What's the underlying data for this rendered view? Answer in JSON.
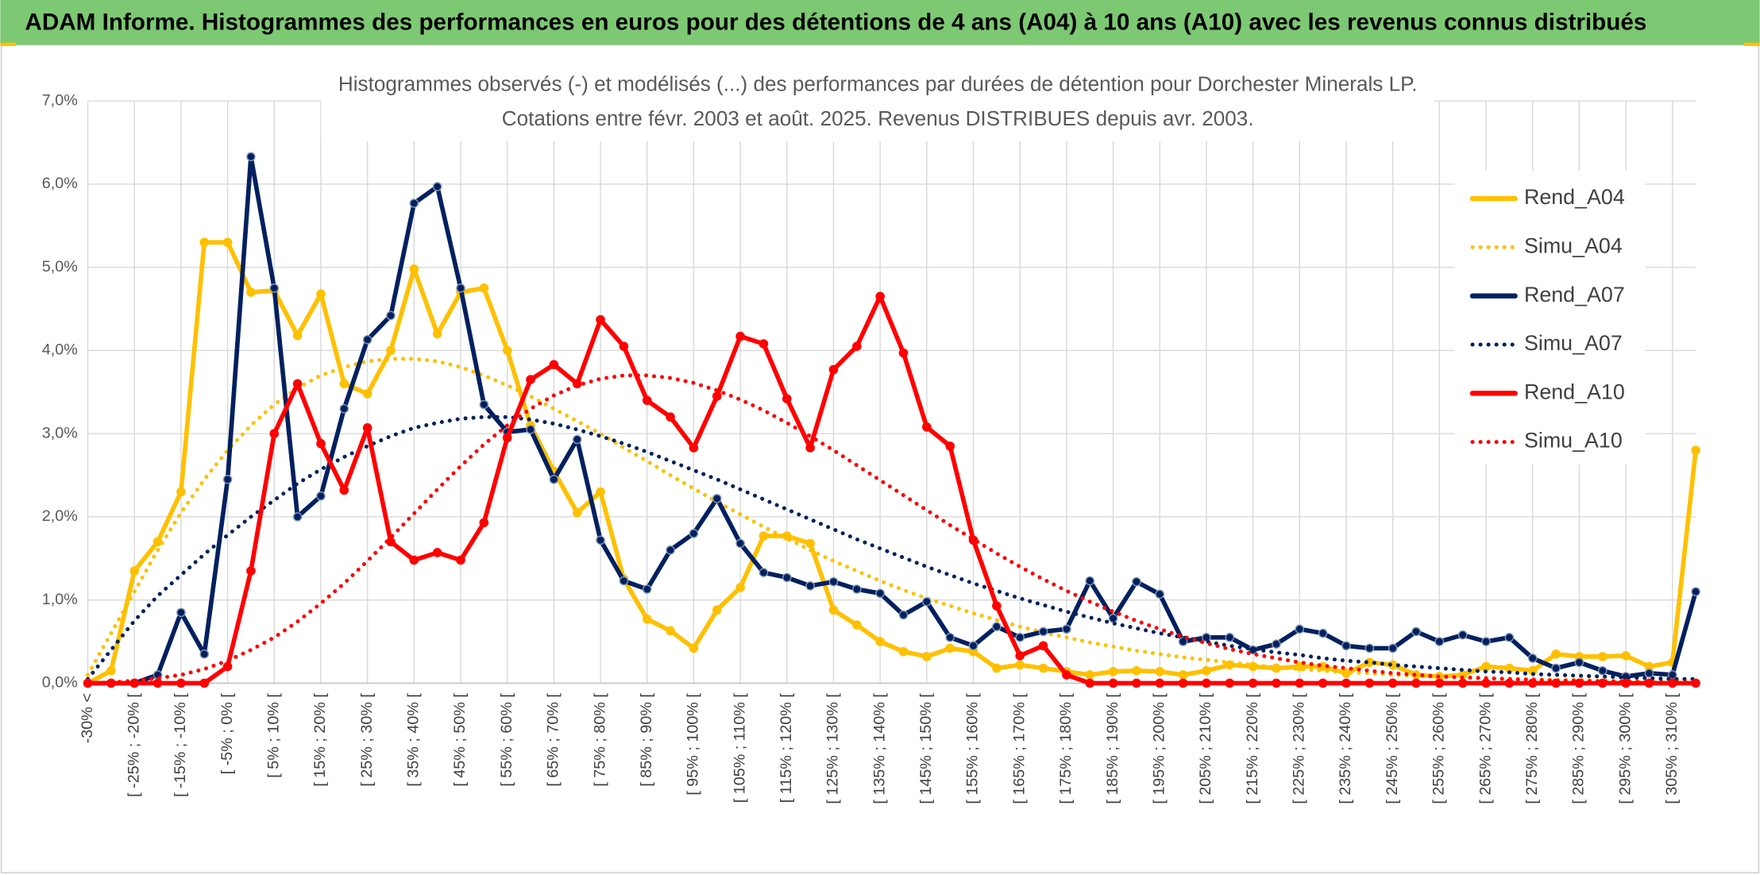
{
  "header": {
    "title": "ADAM Informe. Histogrammes des performances en euros pour des détentions de 4 ans (A04) à 10 ans (A10) avec les revenus connus distribués"
  },
  "chart_data": {
    "type": "line",
    "title": "Histogrammes observés (-) et modélisés (...) des performances par durées de détention pour Dorchester Minerals LP.",
    "subtitle": "Cotations entre févr. 2003 et août. 2025. Revenus DISTRIBUES depuis avr. 2003.",
    "categories": [
      "-30% <",
      null,
      "[ -25% ; -20% [",
      null,
      "[ -15% ; -10% [",
      null,
      "[ -5% ; 0% [",
      null,
      "[ 5% ; 10% [",
      null,
      "[ 15% ; 20% [",
      null,
      "[ 25% ; 30% [",
      null,
      "[ 35% ; 40% [",
      null,
      "[ 45% ; 50% [",
      null,
      "[ 55% ; 60% [",
      null,
      "[ 65% ; 70% [",
      null,
      "[ 75% ; 80% [",
      null,
      "[ 85% ; 90% [",
      null,
      "[ 95% ; 100% [",
      null,
      "[ 105% ; 110% [",
      null,
      "[ 115% ; 120% [",
      null,
      "[ 125% ; 130% [",
      null,
      "[ 135% ; 140% [",
      null,
      "[ 145% ; 150% [",
      null,
      "[ 155% ; 160% [",
      null,
      "[ 165% ; 170% [",
      null,
      "[ 175% ; 180% [",
      null,
      "[ 185% ; 190% [",
      null,
      "[ 195% ; 200% [",
      null,
      "[ 205% ; 210% [",
      null,
      "[ 215% ; 220% [",
      null,
      "[ 225% ; 230% [",
      null,
      "[ 235% ; 240% [",
      null,
      "[ 245% ; 250% [",
      null,
      "[ 255% ; 260% [",
      null,
      "[ 265% ; 270% [",
      null,
      "[ 275% ; 280% [",
      null,
      "[ 285% ; 290% [",
      null,
      "[ 295% ; 300% [",
      null,
      "[ 305% ; 310% [",
      null
    ],
    "ylim": [
      0,
      7
    ],
    "yticks": [
      {
        "value": 0,
        "label": "0,0%"
      },
      {
        "value": 1,
        "label": "1,0%"
      },
      {
        "value": 2,
        "label": "2,0%"
      },
      {
        "value": 3,
        "label": "3,0%"
      },
      {
        "value": 4,
        "label": "4,0%"
      },
      {
        "value": 5,
        "label": "5,0%"
      },
      {
        "value": 6,
        "label": "6,0%"
      },
      {
        "value": 7,
        "label": "7,0%"
      }
    ],
    "grid": true,
    "legend": "right",
    "series": [
      {
        "name": "Rend_A04",
        "color": "#ffc000",
        "line_style": "solid",
        "markers": true,
        "values": [
          0,
          0.15,
          1.35,
          1.7,
          2.3,
          5.3,
          5.3,
          4.7,
          4.72,
          4.18,
          4.68,
          3.6,
          3.48,
          4.0,
          4.98,
          4.2,
          4.7,
          4.75,
          4.0,
          3.1,
          2.55,
          2.05,
          2.3,
          1.25,
          0.77,
          0.63,
          0.42,
          0.88,
          1.15,
          1.77,
          1.77,
          1.68,
          0.88,
          0.7,
          0.5,
          0.38,
          0.32,
          0.42,
          0.38,
          0.18,
          0.22,
          0.18,
          0.14,
          0.1,
          0.14,
          0.15,
          0.14,
          0.1,
          0.15,
          0.22,
          0.2,
          0.18,
          0.2,
          0.2,
          0.12,
          0.25,
          0.22,
          0.1,
          0.08,
          0.1,
          0.2,
          0.18,
          0.15,
          0.35,
          0.32,
          0.32,
          0.33,
          0.2,
          0.25,
          2.8
        ]
      },
      {
        "name": "Simu_A04",
        "color": "#ffc000",
        "line_style": "dotted",
        "markers": false,
        "values": [
          0.1,
          0.6,
          1.1,
          1.6,
          2.05,
          2.45,
          2.8,
          3.1,
          3.35,
          3.55,
          3.7,
          3.8,
          3.87,
          3.9,
          3.9,
          3.87,
          3.8,
          3.7,
          3.58,
          3.45,
          3.3,
          3.15,
          3.0,
          2.83,
          2.67,
          2.5,
          2.34,
          2.18,
          2.03,
          1.88,
          1.74,
          1.6,
          1.47,
          1.35,
          1.23,
          1.12,
          1.02,
          0.93,
          0.84,
          0.76,
          0.68,
          0.61,
          0.55,
          0.49,
          0.44,
          0.39,
          0.35,
          0.31,
          0.28,
          0.25,
          0.22,
          0.19,
          0.17,
          0.15,
          0.13,
          0.12,
          0.1,
          0.09,
          0.08,
          0.07,
          0.06,
          0.05,
          0.05,
          0.04,
          0.04,
          0.03,
          0.03,
          0.02,
          0.02,
          0.02
        ]
      },
      {
        "name": "Rend_A07",
        "color": "#002060",
        "line_style": "solid",
        "markers": true,
        "values": [
          0,
          0,
          0,
          0.1,
          0.85,
          0.35,
          2.45,
          6.33,
          4.75,
          2.0,
          2.25,
          3.3,
          4.13,
          4.42,
          5.77,
          5.97,
          4.75,
          3.35,
          3.02,
          3.05,
          2.45,
          2.93,
          1.72,
          1.23,
          1.13,
          1.6,
          1.8,
          2.22,
          1.68,
          1.33,
          1.27,
          1.17,
          1.22,
          1.13,
          1.08,
          0.82,
          0.98,
          0.55,
          0.45,
          0.68,
          0.55,
          0.62,
          0.65,
          1.23,
          0.78,
          1.22,
          1.07,
          0.5,
          0.55,
          0.55,
          0.4,
          0.47,
          0.65,
          0.6,
          0.45,
          0.42,
          0.42,
          0.62,
          0.5,
          0.58,
          0.5,
          0.55,
          0.3,
          0.18,
          0.25,
          0.15,
          0.08,
          0.12,
          0.1,
          1.1
        ]
      },
      {
        "name": "Simu_A07",
        "color": "#002060",
        "line_style": "dotted",
        "markers": false,
        "values": [
          0.05,
          0.4,
          0.75,
          1.05,
          1.3,
          1.55,
          1.78,
          2.0,
          2.2,
          2.4,
          2.57,
          2.72,
          2.85,
          2.97,
          3.07,
          3.13,
          3.18,
          3.2,
          3.2,
          3.17,
          3.12,
          3.05,
          2.97,
          2.88,
          2.78,
          2.67,
          2.56,
          2.45,
          2.33,
          2.21,
          2.09,
          1.97,
          1.85,
          1.73,
          1.62,
          1.51,
          1.4,
          1.3,
          1.2,
          1.11,
          1.02,
          0.94,
          0.86,
          0.79,
          0.72,
          0.66,
          0.6,
          0.55,
          0.5,
          0.45,
          0.41,
          0.37,
          0.34,
          0.3,
          0.27,
          0.25,
          0.22,
          0.2,
          0.18,
          0.16,
          0.14,
          0.13,
          0.11,
          0.1,
          0.09,
          0.08,
          0.07,
          0.06,
          0.05,
          0.05
        ]
      },
      {
        "name": "Rend_A10",
        "color": "#ff0000",
        "line_style": "solid",
        "markers": true,
        "values": [
          0,
          0,
          0,
          0,
          0,
          0,
          0.2,
          1.35,
          3.0,
          3.6,
          2.88,
          2.32,
          3.07,
          1.7,
          1.48,
          1.57,
          1.48,
          1.93,
          2.95,
          3.65,
          3.83,
          3.6,
          4.37,
          4.05,
          3.4,
          3.2,
          2.83,
          3.45,
          4.17,
          4.08,
          3.42,
          2.83,
          3.77,
          4.05,
          4.65,
          3.97,
          3.08,
          2.85,
          1.72,
          0.93,
          0.33,
          0.45,
          0.1,
          0,
          0,
          0,
          0,
          0,
          0,
          0,
          0,
          0,
          0,
          0,
          0,
          0,
          0,
          0,
          0,
          0,
          0,
          0,
          0,
          0,
          0,
          0,
          0,
          0,
          0,
          0
        ]
      },
      {
        "name": "Simu_A10",
        "color": "#ff0000",
        "line_style": "dotted",
        "markers": false,
        "values": [
          0,
          0.01,
          0.03,
          0.06,
          0.1,
          0.17,
          0.27,
          0.4,
          0.55,
          0.74,
          0.96,
          1.2,
          1.47,
          1.75,
          2.04,
          2.33,
          2.61,
          2.87,
          3.1,
          3.3,
          3.46,
          3.58,
          3.66,
          3.7,
          3.7,
          3.67,
          3.61,
          3.52,
          3.41,
          3.28,
          3.13,
          2.97,
          2.8,
          2.62,
          2.44,
          2.26,
          2.08,
          1.9,
          1.73,
          1.56,
          1.4,
          1.25,
          1.11,
          0.98,
          0.86,
          0.75,
          0.65,
          0.56,
          0.48,
          0.41,
          0.35,
          0.3,
          0.25,
          0.21,
          0.18,
          0.15,
          0.12,
          0.1,
          0.08,
          0.07,
          0.06,
          0.05,
          0.04,
          0.03,
          0.03,
          0.02,
          0.02,
          0.01,
          0.01,
          0.01
        ]
      }
    ]
  }
}
